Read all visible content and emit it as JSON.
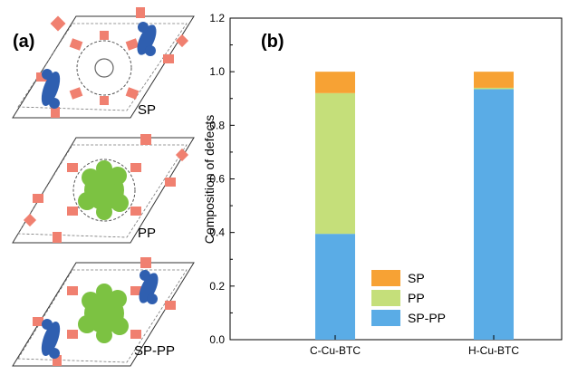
{
  "panel_a": {
    "label": "(a)",
    "structures": [
      {
        "label": "SP"
      },
      {
        "label": "PP"
      },
      {
        "label": "SP-PP"
      }
    ],
    "colors": {
      "frame": "#333333",
      "paddle": "#f08070",
      "sp_cluster": "#2f5fb0",
      "pp_cluster": "#7cc242",
      "linker": "#888888"
    }
  },
  "chart_data": {
    "type": "bar",
    "stacked": true,
    "panel_label": "(b)",
    "categories": [
      "C-Cu-BTC",
      "H-Cu-BTC"
    ],
    "series": [
      {
        "name": "SP-PP",
        "values": [
          0.395,
          0.935
        ],
        "color": "#5aace6"
      },
      {
        "name": "PP",
        "values": [
          0.525,
          0.005
        ],
        "color": "#c5df7a"
      },
      {
        "name": "SP",
        "values": [
          0.08,
          0.06
        ],
        "color": "#f7a234"
      }
    ],
    "legend_order": [
      "SP",
      "PP",
      "SP-PP"
    ],
    "ylabel": "Composition of defects",
    "xlabel": "",
    "ylim": [
      0,
      1.2
    ],
    "yticks": [
      "0.0",
      "0.2",
      "0.4",
      "0.6",
      "0.8",
      "1.0",
      "1.2"
    ],
    "legend_position": "bottom-left-center"
  }
}
